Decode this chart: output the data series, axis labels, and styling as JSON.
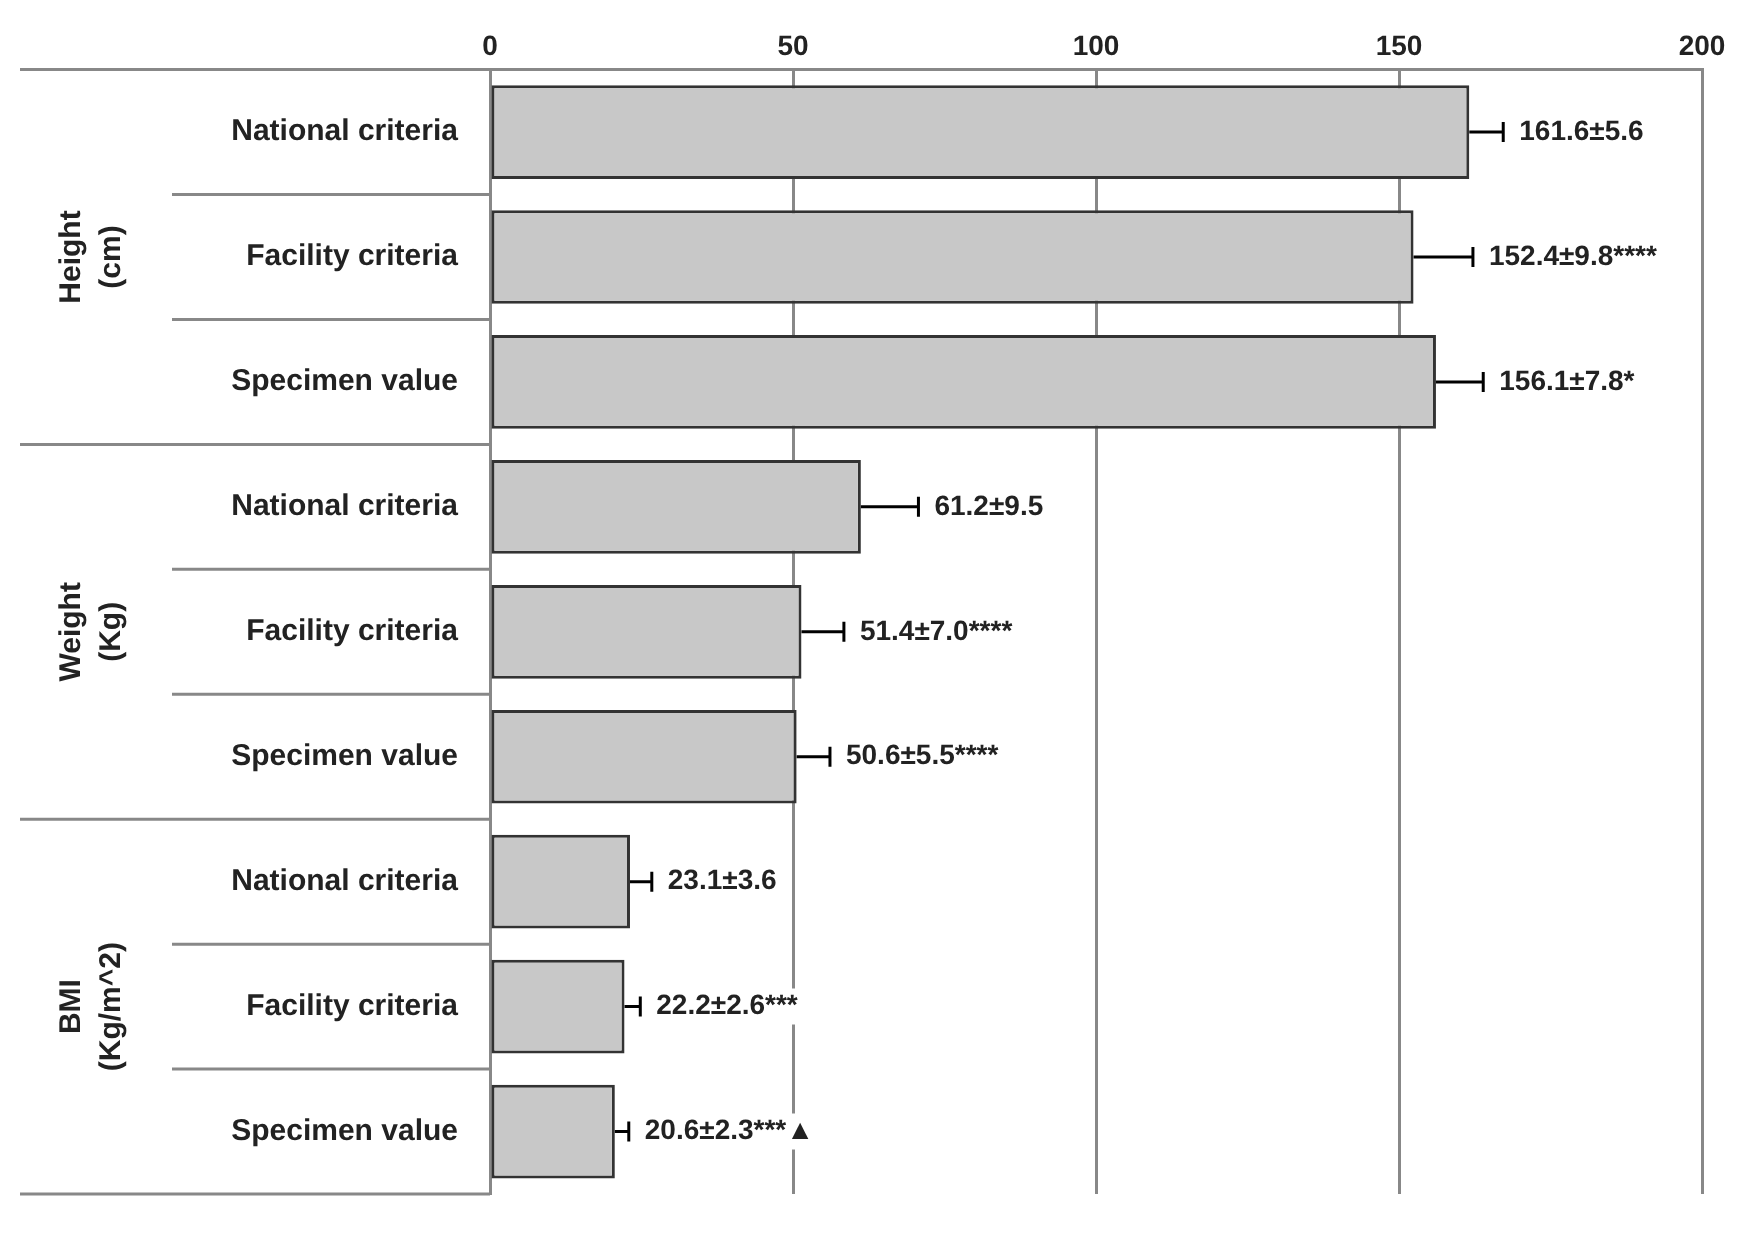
{
  "chart_data": {
    "type": "bar",
    "orientation": "horizontal",
    "categories": [
      "National criteria",
      "Facility criteria",
      "Specimen value",
      "National criteria",
      "Facility criteria",
      "Specimen value",
      "National criteria",
      "Facility criteria",
      "Specimen value"
    ],
    "values": [
      161.6,
      152.4,
      156.1,
      61.2,
      51.4,
      50.6,
      23.1,
      22.2,
      20.6
    ],
    "errors": [
      5.6,
      9.8,
      7.8,
      9.5,
      7.0,
      5.5,
      3.6,
      2.6,
      2.3
    ],
    "value_labels": [
      "161.6±5.6",
      "152.4±9.8****",
      "156.1±7.8*",
      "61.2±9.5",
      "51.4±7.0****",
      "50.6±5.5****",
      "23.1±3.6",
      "22.2±2.6***",
      "20.6±2.3***▲"
    ],
    "color": "#c8c8c8",
    "xlim": [
      0,
      200
    ],
    "xticks": [
      0,
      50,
      100,
      150,
      200
    ],
    "grid": "x",
    "legend": false,
    "annotations": [
      "Height (cm)",
      "Weight (Kg)",
      "BMI (Kg/m^2)"
    ]
  }
}
